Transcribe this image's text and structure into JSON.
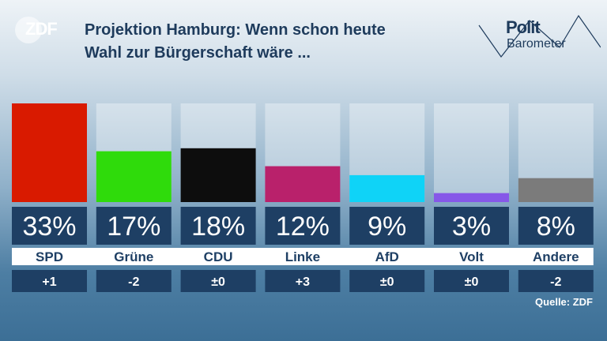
{
  "header": {
    "logo_text": "ZDF",
    "title_line1": "Projektion Hamburg: Wenn schon heute",
    "title_line2": "Wahl zur Bürgerschaft wäre ...",
    "brand_line1": "Polit",
    "brand_line2": "Barometer"
  },
  "source": "Quelle: ZDF",
  "chart_data": {
    "type": "bar",
    "title": "Projektion Hamburg: Wenn schon heute Wahl zur Bürgerschaft wäre ...",
    "categories": [
      "SPD",
      "Grüne",
      "CDU",
      "Linke",
      "AfD",
      "Volt",
      "Andere"
    ],
    "values": [
      33,
      17,
      18,
      12,
      9,
      3,
      8
    ],
    "value_labels": [
      "33%",
      "17%",
      "18%",
      "12%",
      "9%",
      "3%",
      "8%"
    ],
    "changes": [
      "+1",
      "-2",
      "±0",
      "+3",
      "±0",
      "±0",
      "-2"
    ],
    "colors": [
      "#d91a00",
      "#2fdb0b",
      "#0d0d0d",
      "#b9216b",
      "#0fd3f7",
      "#8658e8",
      "#7b7b7b"
    ],
    "ylim": [
      0,
      33
    ]
  }
}
